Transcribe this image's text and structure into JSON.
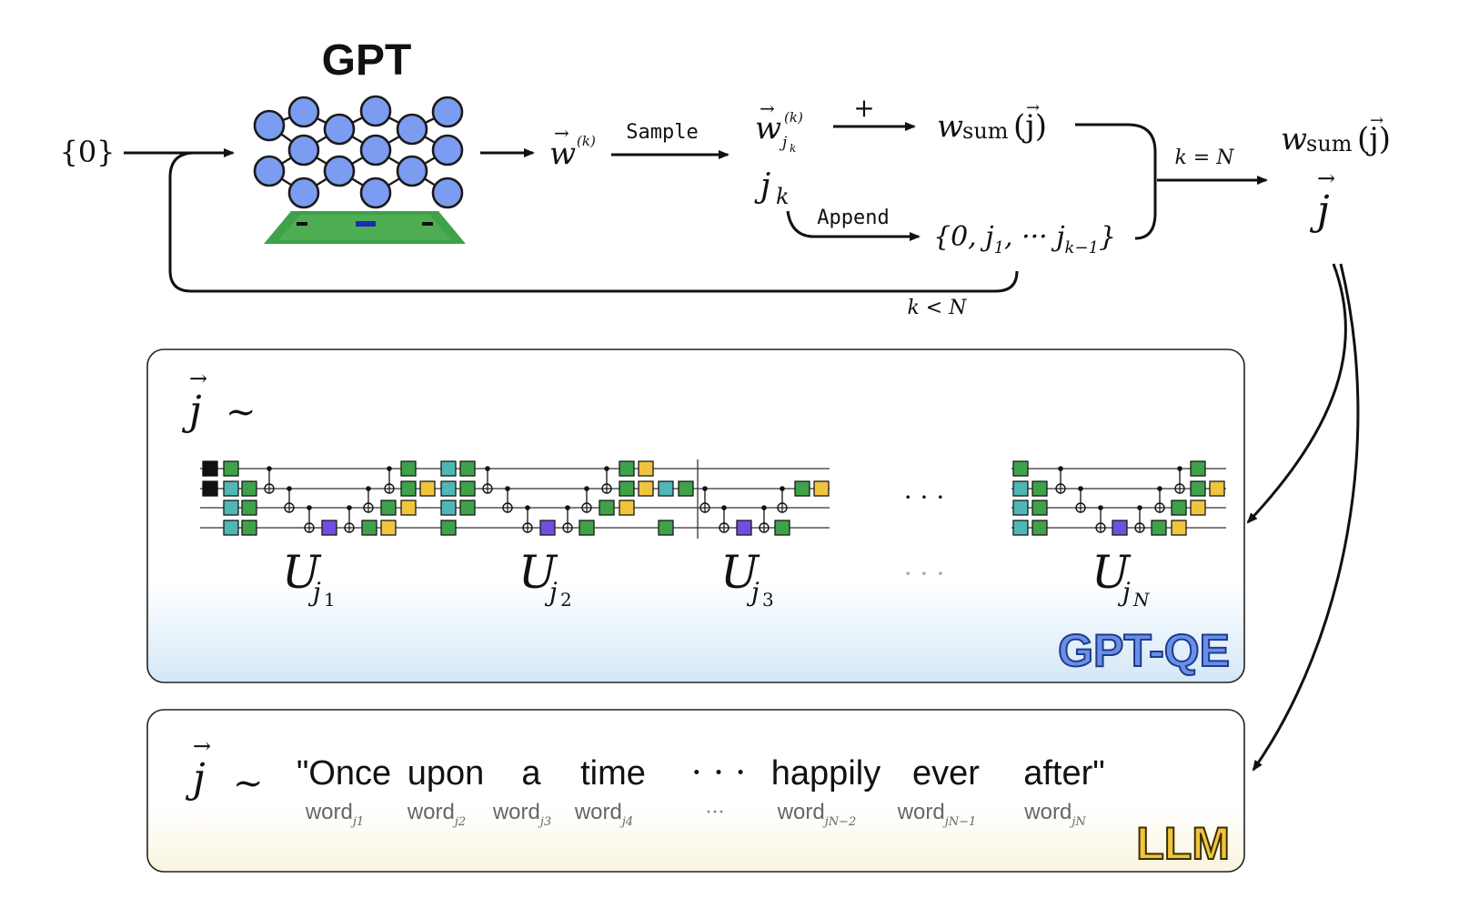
{
  "gpt_block": {
    "title": "GPT",
    "input_set": "{0}",
    "sample_label": "Sample",
    "append_label": "Append",
    "plus_label": "+",
    "k_eq_n": "k = N",
    "k_lt_n": "k < N"
  },
  "math": {
    "w_vec": "w",
    "w_sup": "(k)",
    "w_sub": "j",
    "w_sub_sub": "k",
    "j_k_base": "j",
    "j_k_sub": "k",
    "w_sum_w": "w",
    "w_sum_sub": "sum",
    "w_sum_arg": "(j)",
    "set_open": "{0, j",
    "set_sub1": "1",
    "set_mid": ", ··· j",
    "set_sub2": "k−1",
    "set_close": "}",
    "out_j": "j"
  },
  "gptqe_panel": {
    "label": "GPT-QE",
    "tilde": "~",
    "unitary_base": "U",
    "unitaries": [
      {
        "sub": "j",
        "subsub": "1"
      },
      {
        "sub": "j",
        "subsub": "2"
      },
      {
        "sub": "j",
        "subsub": "3"
      },
      {
        "sub": "j",
        "subsub": "N"
      }
    ],
    "dots": "· · ·"
  },
  "llm_panel": {
    "label": "LLM",
    "tilde": "~",
    "sentence": [
      "\"Once",
      "upon",
      "a",
      "time",
      "· · ·",
      "happily",
      "ever",
      "after\""
    ],
    "word_base": "word",
    "word_subs": [
      "j1",
      "j2",
      "j3",
      "j4",
      "···",
      "jN−2",
      "jN−1",
      "jN"
    ]
  },
  "colors": {
    "node_fill": "#7b9cf0",
    "gptqe_label": "#6a8fe8",
    "llm_label": "#f0c43d",
    "board_green": "#3fa14a"
  }
}
